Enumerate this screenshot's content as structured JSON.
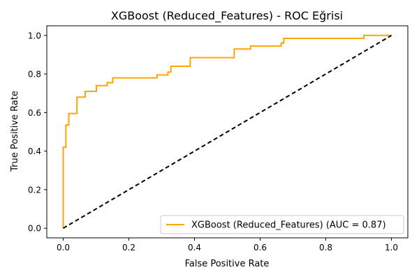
{
  "chart_data": {
    "type": "line",
    "title": "XGBoost (Reduced_Features) - ROC Eğrisi",
    "xlabel": "False Positive Rate",
    "ylabel": "True Positive Rate",
    "xlim": [
      -0.05,
      1.05
    ],
    "ylim": [
      -0.05,
      1.05
    ],
    "xticks": [
      0.0,
      0.2,
      0.4,
      0.6,
      0.8,
      1.0
    ],
    "yticks": [
      0.0,
      0.2,
      0.4,
      0.6,
      0.8,
      1.0
    ],
    "tick_labels": [
      "0.0",
      "0.2",
      "0.4",
      "0.6",
      "0.8",
      "1.0"
    ],
    "grid": false,
    "legend_position": "lower-right",
    "series": [
      {
        "name": "XGBoost (Reduced_Features) (AUC = 0.87)",
        "color": "#ffa500",
        "style": "solid-step",
        "x": [
          0.0,
          0.0,
          0.008,
          0.008,
          0.017,
          0.017,
          0.042,
          0.042,
          0.067,
          0.067,
          0.101,
          0.101,
          0.134,
          0.134,
          0.151,
          0.151,
          0.286,
          0.286,
          0.319,
          0.319,
          0.328,
          0.328,
          0.387,
          0.387,
          0.521,
          0.521,
          0.571,
          0.571,
          0.664,
          0.664,
          0.672,
          0.672,
          0.916,
          0.916,
          1.0
        ],
        "y": [
          0.0,
          0.42,
          0.42,
          0.535,
          0.535,
          0.595,
          0.595,
          0.68,
          0.68,
          0.71,
          0.71,
          0.74,
          0.74,
          0.755,
          0.755,
          0.78,
          0.78,
          0.795,
          0.795,
          0.81,
          0.81,
          0.84,
          0.84,
          0.885,
          0.885,
          0.93,
          0.93,
          0.945,
          0.945,
          0.96,
          0.96,
          0.985,
          0.985,
          1.0,
          1.0
        ]
      },
      {
        "name": "",
        "color": "#000000",
        "style": "dashed",
        "x": [
          0.0,
          1.0
        ],
        "y": [
          0.0,
          1.0
        ]
      }
    ]
  }
}
